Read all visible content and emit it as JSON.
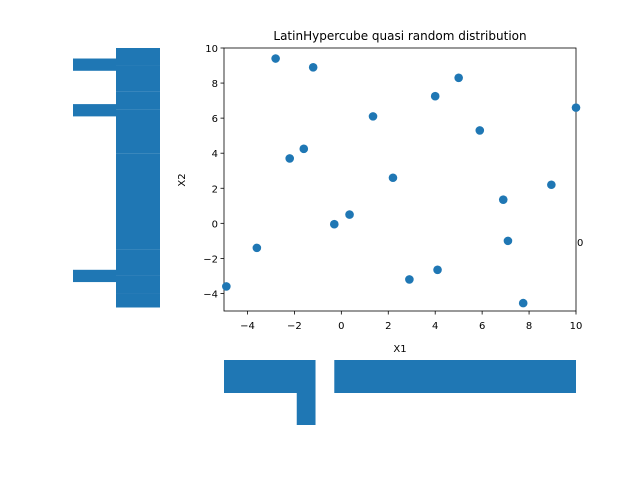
{
  "chart_data": {
    "type": "scatter",
    "title": "LatinHypercube quasi random distribution",
    "xlabel": "X1",
    "ylabel": "X2",
    "xlim": [
      -5,
      10
    ],
    "ylim": [
      -5,
      10
    ],
    "xticks": [
      "−4",
      "−2",
      "0",
      "2",
      "4",
      "6",
      "8",
      "10"
    ],
    "yticks": [
      "−4",
      "−2",
      "0",
      "2",
      "4",
      "6",
      "8",
      "10"
    ],
    "xtick_values": [
      -4,
      -2,
      0,
      2,
      4,
      6,
      8,
      10
    ],
    "ytick_values": [
      -4,
      -2,
      0,
      2,
      4,
      6,
      8,
      10
    ],
    "grid": false,
    "color": "#1f77b4",
    "points": [
      {
        "x": -4.9,
        "y": -3.6
      },
      {
        "x": -3.6,
        "y": -1.4
      },
      {
        "x": -2.8,
        "y": 9.4
      },
      {
        "x": -2.2,
        "y": 3.7
      },
      {
        "x": -1.6,
        "y": 4.25
      },
      {
        "x": -1.2,
        "y": 8.9
      },
      {
        "x": -0.3,
        "y": -0.05
      },
      {
        "x": 0.35,
        "y": 0.5
      },
      {
        "x": 1.35,
        "y": 6.1
      },
      {
        "x": 2.2,
        "y": 2.6
      },
      {
        "x": 2.9,
        "y": -3.2
      },
      {
        "x": 4.0,
        "y": 7.25
      },
      {
        "x": 4.1,
        "y": -2.65
      },
      {
        "x": 5.0,
        "y": 8.3
      },
      {
        "x": 5.9,
        "y": 5.3
      },
      {
        "x": 6.9,
        "y": 1.35
      },
      {
        "x": 7.1,
        "y": -1.0
      },
      {
        "x": 7.75,
        "y": -4.55
      },
      {
        "x": 8.95,
        "y": 2.2
      },
      {
        "x": 10.0,
        "y": 6.6
      }
    ],
    "stray_label": "0",
    "left_marginal": {
      "x_range": [
        -5,
        10
      ],
      "bars": [
        {
          "y0": 9.0,
          "y1": 10.0,
          "right_value": 10
        },
        {
          "y0": 7.5,
          "y1": 9.0,
          "right_value": 10
        },
        {
          "y0": 6.5,
          "y1": 7.5,
          "right_value": 10
        },
        {
          "y0": 4.0,
          "y1": 6.5,
          "right_value": 10
        },
        {
          "y0": -1.5,
          "y1": 4.0,
          "right_value": 10
        },
        {
          "y0": -3.0,
          "y1": -1.5,
          "right_value": 10
        },
        {
          "y0": -4.0,
          "y1": -3.0,
          "right_value": 10
        },
        {
          "y0": -4.8,
          "y1": -4.0,
          "right_value": 10
        }
      ],
      "spikes": [
        {
          "y0": 8.7,
          "y1": 9.4,
          "left_value": -5
        },
        {
          "y0": 6.1,
          "y1": 6.8,
          "left_value": -5
        },
        {
          "y0": -3.35,
          "y1": -2.65,
          "left_value": -5
        }
      ]
    },
    "bottom_marginal": {
      "y_range": [
        -5,
        10
      ],
      "bars": [
        {
          "x0": -5.0,
          "x1": -1.1,
          "bottom_value": 10
        },
        {
          "x0": -0.3,
          "x1": 10.0,
          "bottom_value": 10
        }
      ],
      "spikes": [
        {
          "x0": -1.9,
          "x1": -1.1,
          "bottom_value": -5
        }
      ]
    }
  }
}
